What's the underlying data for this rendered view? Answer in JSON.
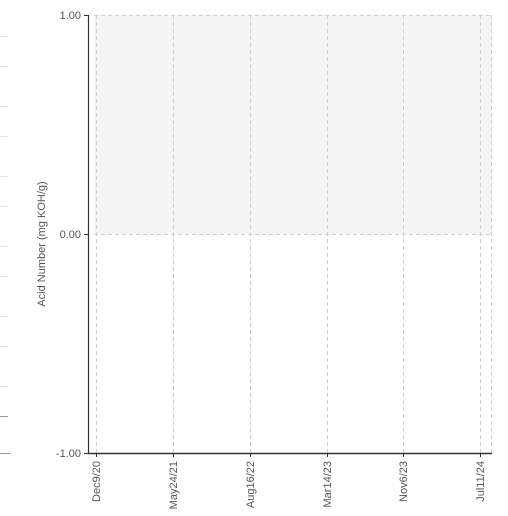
{
  "chart_data": {
    "type": "line",
    "ylabel": "Acid Number (mg KOH/g)",
    "xlabel": "",
    "title": "",
    "ylim": [
      -1.0,
      1.0
    ],
    "y_ticks": [
      "1.00",
      "0.00",
      "-1.00"
    ],
    "x_ticks": [
      "Dec9/20",
      "May24/21",
      "Aug16/22",
      "Mar14/23",
      "Nov6/23",
      "Jul11/24"
    ],
    "series": [],
    "shaded_band": {
      "from": 0.0,
      "to": 1.0,
      "color": "#f4f4f4"
    },
    "grid": true,
    "colors": {
      "axis": "#333333",
      "grid": "#cfcfcf",
      "text": "#555555"
    }
  }
}
